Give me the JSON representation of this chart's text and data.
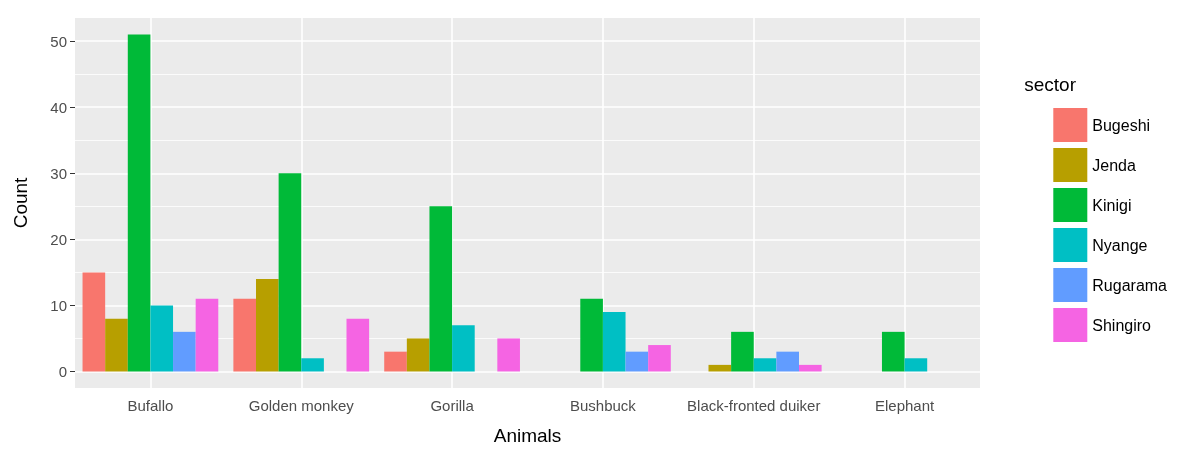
{
  "chart_data": {
    "type": "bar",
    "xlabel": "Animals",
    "ylabel": "Count",
    "legend_title": "sector",
    "categories": [
      "Bufallo",
      "Golden monkey",
      "Gorilla",
      "Bushbuck",
      "Black-fronted duiker",
      "Elephant"
    ],
    "series": [
      {
        "name": "Bugeshi",
        "color": "#f8766d",
        "values": [
          15,
          11,
          3,
          null,
          null,
          null
        ]
      },
      {
        "name": "Jenda",
        "color": "#b79f00",
        "values": [
          8,
          14,
          5,
          null,
          1,
          null
        ]
      },
      {
        "name": "Kinigi",
        "color": "#00ba38",
        "values": [
          51,
          30,
          25,
          11,
          6,
          6
        ]
      },
      {
        "name": "Nyange",
        "color": "#00bfc4",
        "values": [
          10,
          2,
          7,
          9,
          2,
          2
        ]
      },
      {
        "name": "Rugarama",
        "color": "#619cff",
        "values": [
          6,
          null,
          null,
          3,
          3,
          null
        ]
      },
      {
        "name": "Shingiro",
        "color": "#f564e3",
        "values": [
          11,
          8,
          5,
          4,
          1,
          null
        ]
      }
    ],
    "ylim": [
      -2.5,
      53.5
    ],
    "yticks": [
      0,
      10,
      20,
      30,
      40,
      50
    ],
    "grid": true,
    "legend": "right"
  }
}
